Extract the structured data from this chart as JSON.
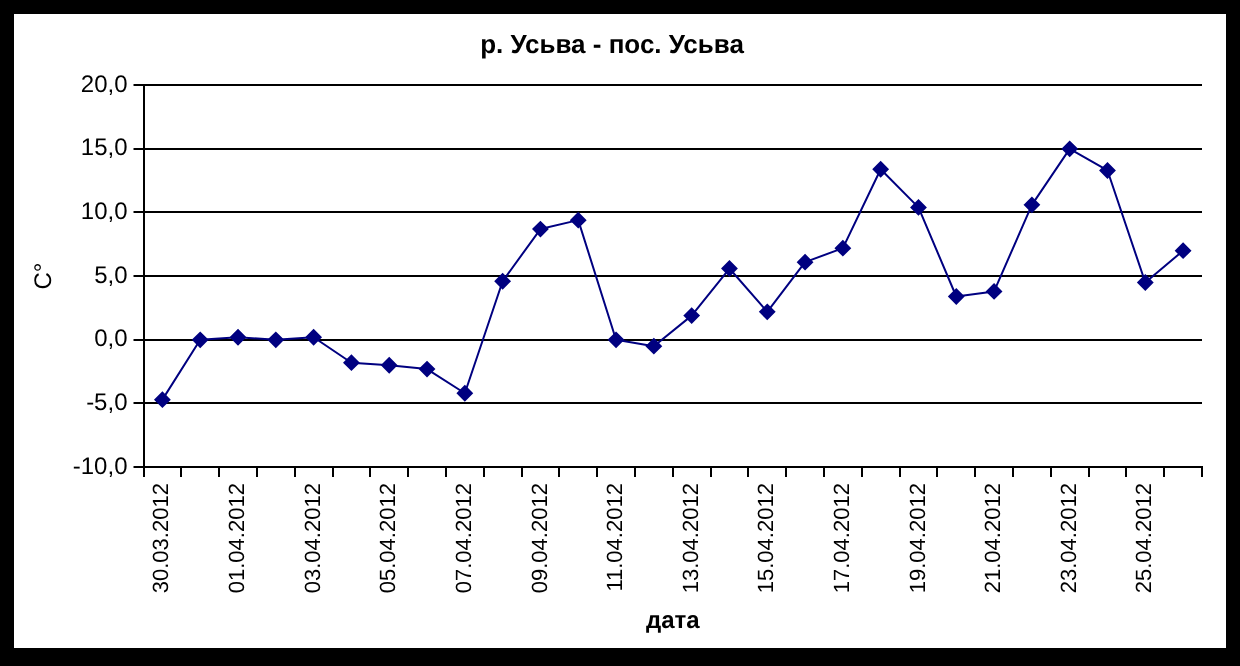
{
  "chart_data": {
    "type": "line",
    "title": "р. Усьва - пос. Усьва",
    "xlabel": "дата",
    "ylabel": "С°",
    "categories": [
      "30.03.2012",
      null,
      "01.04.2012",
      null,
      "03.04.2012",
      null,
      "05.04.2012",
      null,
      "07.04.2012",
      null,
      "09.04.2012",
      null,
      "11.04.2012",
      null,
      "13.04.2012",
      null,
      "15.04.2012",
      null,
      "17.04.2012",
      null,
      "19.04.2012",
      null,
      "21.04.2012",
      null,
      "23.04.2012",
      null,
      "25.04.2012",
      null
    ],
    "series": [
      {
        "color": "#000080",
        "values": [
          -4.7,
          0.0,
          0.2,
          0.0,
          0.2,
          -1.8,
          -2.0,
          -2.3,
          -4.2,
          4.6,
          8.7,
          9.4,
          0.0,
          -0.5,
          1.9,
          5.6,
          2.2,
          6.1,
          7.2,
          13.4,
          10.4,
          3.4,
          3.8,
          10.6,
          15.0,
          13.3,
          4.5,
          7.0
        ]
      }
    ],
    "ylim": [
      -10,
      20
    ],
    "yticks": [
      {
        "value": -10,
        "label": "-10,0"
      },
      {
        "value": -5,
        "label": "-5,0"
      },
      {
        "value": 0,
        "label": "0,0"
      },
      {
        "value": 5,
        "label": "5,0"
      },
      {
        "value": 10,
        "label": "10,0"
      },
      {
        "value": 15,
        "label": "15,0"
      },
      {
        "value": 20,
        "label": "20,0"
      }
    ],
    "grid": "y",
    "marker": "diamond",
    "line_style": "solid"
  }
}
